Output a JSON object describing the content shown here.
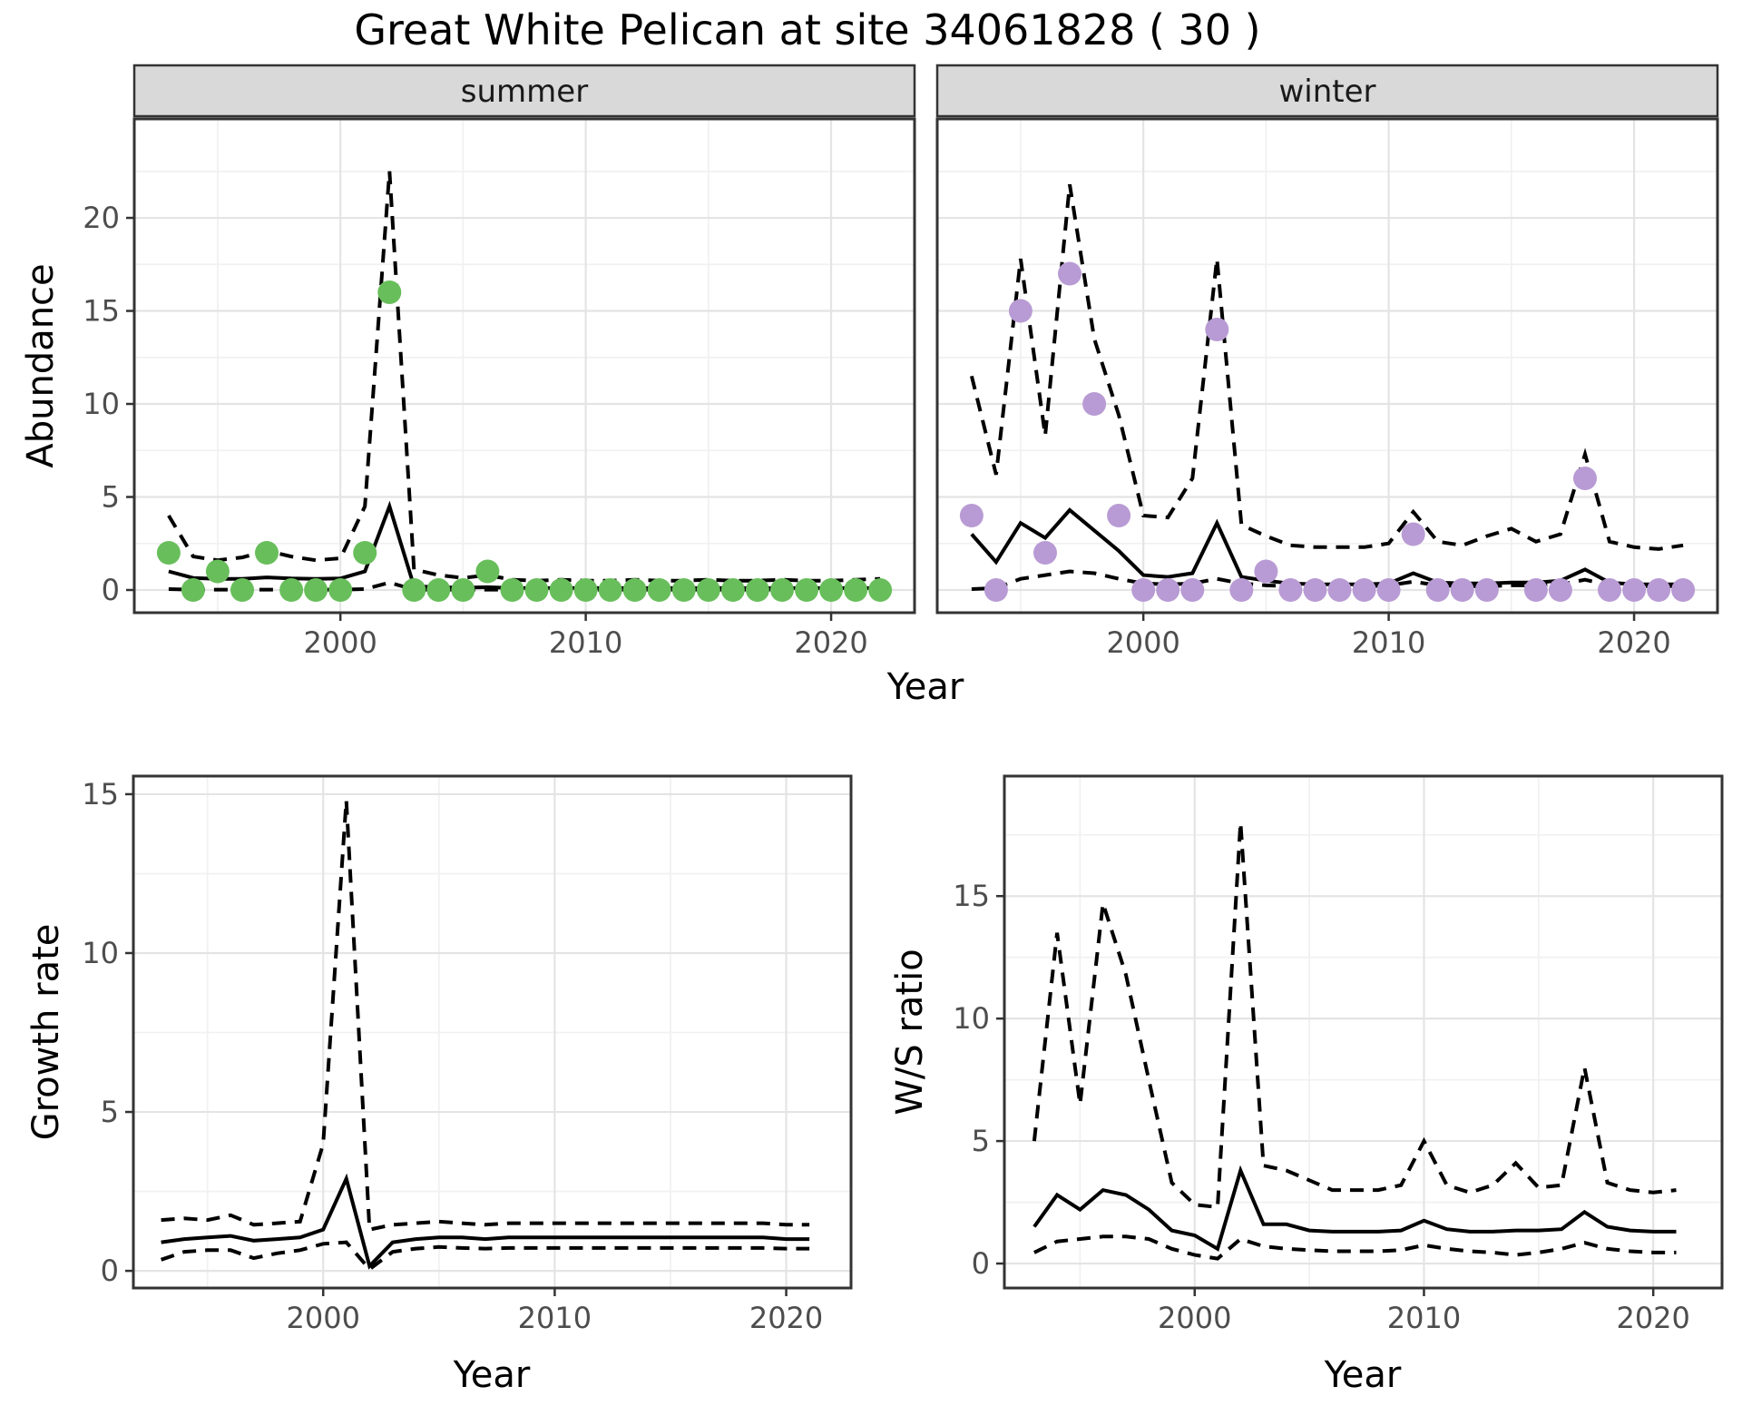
{
  "title": "Great White Pelican at site 34061828 ( 30 )",
  "colors": {
    "summer_point": "#68be5b",
    "winter_point": "#b89bd4",
    "line": "#000000",
    "panel_border": "#333333",
    "strip_bg": "#d9d9d9",
    "strip_text": "#1a1a1a",
    "grid_major": "#e4e4e4",
    "grid_minor": "#f1f1f1",
    "tick_label": "#4d4d4d",
    "axis_title": "#000000"
  },
  "chart_data": [
    {
      "id": "abundance-summer",
      "type": "line",
      "facet_label": "summer",
      "xlabel": "Year",
      "ylabel": "Abundance",
      "xlim": [
        1991.6,
        2023.4
      ],
      "ylim": [
        -1.22,
        25.32
      ],
      "x_ticks": [
        2000,
        2010,
        2020
      ],
      "y_ticks": [
        0,
        5,
        10,
        15,
        20
      ],
      "x_minor": [
        1995,
        2005,
        2015
      ],
      "y_minor": [
        2.5,
        7.5,
        12.5,
        17.5,
        22.5
      ],
      "grid": true,
      "legend_position": "none",
      "x": [
        1993,
        1994,
        1995,
        1996,
        1997,
        1998,
        1999,
        2000,
        2001,
        2002,
        2003,
        2004,
        2005,
        2006,
        2007,
        2008,
        2009,
        2010,
        2011,
        2012,
        2013,
        2014,
        2015,
        2016,
        2017,
        2018,
        2019,
        2020,
        2021,
        2022
      ],
      "series": [
        {
          "name": "median",
          "style": "solid",
          "values": [
            1.0,
            0.65,
            0.6,
            0.6,
            0.68,
            0.62,
            0.6,
            0.62,
            1.0,
            4.5,
            0.2,
            0.15,
            0.12,
            0.15,
            0.1,
            0.1,
            0.1,
            0.1,
            0.1,
            0.1,
            0.1,
            0.1,
            0.1,
            0.1,
            0.1,
            0.1,
            0.1,
            0.1,
            0.1,
            0.1
          ]
        },
        {
          "name": "upper_ci",
          "style": "dashed",
          "values": [
            4.0,
            1.8,
            1.6,
            1.75,
            2.1,
            1.8,
            1.6,
            1.7,
            4.5,
            22.5,
            1.1,
            0.8,
            0.65,
            0.8,
            0.55,
            0.5,
            0.55,
            0.5,
            0.5,
            0.55,
            0.5,
            0.5,
            0.55,
            0.5,
            0.5,
            0.55,
            0.5,
            0.5,
            0.55,
            0.6
          ]
        },
        {
          "name": "lower_ci",
          "style": "dashed",
          "values": [
            0.05,
            0.02,
            0.02,
            0.02,
            0.02,
            0.02,
            0.02,
            0.02,
            0.05,
            0.4,
            0.02,
            0.02,
            0.02,
            0.02,
            0.02,
            0.02,
            0.02,
            0.02,
            0.02,
            0.02,
            0.02,
            0.02,
            0.02,
            0.02,
            0.02,
            0.02,
            0.02,
            0.02,
            0.02,
            0.02
          ]
        }
      ],
      "points": {
        "name": "observed",
        "color_key": "summer_point",
        "values": [
          2,
          0,
          1,
          0,
          2,
          0,
          0,
          0,
          2,
          16,
          0,
          0,
          0,
          1,
          0,
          0,
          0,
          0,
          0,
          0,
          0,
          0,
          0,
          0,
          0,
          0,
          0,
          0,
          0,
          0
        ]
      }
    },
    {
      "id": "abundance-winter",
      "type": "line",
      "facet_label": "winter",
      "xlabel": "Year",
      "ylabel": "Abundance",
      "xlim": [
        1991.6,
        2023.4
      ],
      "ylim": [
        -1.22,
        25.32
      ],
      "x_ticks": [
        2000,
        2010,
        2020
      ],
      "y_ticks": [
        0,
        5,
        10,
        15,
        20
      ],
      "x_minor": [
        1995,
        2005,
        2015
      ],
      "y_minor": [
        2.5,
        7.5,
        12.5,
        17.5,
        22.5
      ],
      "grid": true,
      "legend_position": "none",
      "x": [
        1993,
        1994,
        1995,
        1996,
        1997,
        1998,
        1999,
        2000,
        2001,
        2002,
        2003,
        2004,
        2005,
        2006,
        2007,
        2008,
        2009,
        2010,
        2011,
        2012,
        2013,
        2014,
        2015,
        2016,
        2017,
        2018,
        2019,
        2020,
        2021,
        2022
      ],
      "series": [
        {
          "name": "median",
          "style": "solid",
          "values": [
            3.0,
            1.5,
            3.6,
            2.8,
            4.3,
            3.2,
            2.1,
            0.8,
            0.7,
            0.9,
            3.6,
            0.7,
            0.5,
            0.35,
            0.3,
            0.3,
            0.3,
            0.35,
            0.9,
            0.4,
            0.35,
            0.35,
            0.4,
            0.4,
            0.5,
            1.1,
            0.4,
            0.3,
            0.3,
            0.3
          ]
        },
        {
          "name": "upper_ci",
          "style": "dashed",
          "values": [
            11.5,
            6.2,
            17.8,
            8.3,
            21.8,
            13.5,
            9.4,
            4.0,
            3.9,
            6.0,
            17.8,
            3.5,
            2.9,
            2.4,
            2.3,
            2.3,
            2.3,
            2.5,
            4.2,
            2.6,
            2.4,
            2.9,
            3.3,
            2.6,
            3.0,
            7.3,
            2.6,
            2.3,
            2.2,
            2.4
          ]
        },
        {
          "name": "lower_ci",
          "style": "dashed",
          "values": [
            0.05,
            0.1,
            0.6,
            0.8,
            1.0,
            0.9,
            0.6,
            0.35,
            0.3,
            0.35,
            0.6,
            0.35,
            0.25,
            0.2,
            0.2,
            0.2,
            0.2,
            0.25,
            0.45,
            0.25,
            0.2,
            0.2,
            0.25,
            0.25,
            0.3,
            0.55,
            0.25,
            0.2,
            0.2,
            0.2
          ]
        }
      ],
      "points": {
        "name": "observed",
        "color_key": "winter_point",
        "values": [
          4,
          0,
          15,
          2,
          17,
          10,
          4,
          0,
          0,
          0,
          14,
          0,
          1,
          0,
          0,
          0,
          0,
          0,
          3,
          0,
          0,
          0,
          null,
          0,
          0,
          6,
          0,
          0,
          0,
          0
        ]
      }
    },
    {
      "id": "growth-rate",
      "type": "line",
      "facet_label": null,
      "xlabel": "Year",
      "ylabel": "Growth rate",
      "xlim": [
        1991.8,
        2022.8
      ],
      "ylim": [
        -0.54,
        15.57
      ],
      "x_ticks": [
        2000,
        2010,
        2020
      ],
      "y_ticks": [
        0,
        5,
        10,
        15
      ],
      "x_minor": [
        1995,
        2005,
        2015
      ],
      "y_minor": [
        2.5,
        7.5,
        12.5
      ],
      "grid": true,
      "legend_position": "none",
      "x": [
        1993,
        1994,
        1995,
        1996,
        1997,
        1998,
        1999,
        2000,
        2001,
        2002,
        2003,
        2004,
        2005,
        2006,
        2007,
        2008,
        2009,
        2010,
        2011,
        2012,
        2013,
        2014,
        2015,
        2016,
        2017,
        2018,
        2019,
        2020,
        2021
      ],
      "series": [
        {
          "name": "median",
          "style": "solid",
          "values": [
            0.9,
            1.0,
            1.05,
            1.1,
            0.95,
            1.0,
            1.05,
            1.3,
            2.9,
            0.15,
            0.9,
            1.0,
            1.05,
            1.05,
            1.0,
            1.05,
            1.05,
            1.05,
            1.05,
            1.05,
            1.05,
            1.05,
            1.05,
            1.05,
            1.05,
            1.05,
            1.05,
            1.0,
            1.0
          ]
        },
        {
          "name": "upper_ci",
          "style": "dashed",
          "values": [
            1.6,
            1.65,
            1.6,
            1.75,
            1.45,
            1.5,
            1.55,
            4.0,
            14.8,
            1.3,
            1.45,
            1.5,
            1.55,
            1.5,
            1.45,
            1.5,
            1.5,
            1.5,
            1.5,
            1.5,
            1.5,
            1.5,
            1.5,
            1.5,
            1.5,
            1.5,
            1.5,
            1.45,
            1.45
          ]
        },
        {
          "name": "lower_ci",
          "style": "dashed",
          "values": [
            0.35,
            0.6,
            0.65,
            0.65,
            0.4,
            0.55,
            0.65,
            0.85,
            0.9,
            0.05,
            0.6,
            0.7,
            0.75,
            0.72,
            0.7,
            0.72,
            0.72,
            0.72,
            0.72,
            0.72,
            0.72,
            0.72,
            0.72,
            0.72,
            0.72,
            0.72,
            0.72,
            0.7,
            0.7
          ]
        }
      ],
      "points": null
    },
    {
      "id": "ws-ratio",
      "type": "line",
      "facet_label": null,
      "xlabel": "Year",
      "ylabel": "W/S ratio",
      "xlim": [
        1991.7,
        2023.0
      ],
      "ylim": [
        -1.0,
        19.9
      ],
      "x_ticks": [
        2000,
        2010,
        2020
      ],
      "y_ticks": [
        0,
        5,
        10,
        15
      ],
      "x_minor": [
        1995,
        2005,
        2015
      ],
      "y_minor": [
        2.5,
        7.5,
        12.5,
        17.5
      ],
      "grid": true,
      "legend_position": "none",
      "x": [
        1993,
        1994,
        1995,
        1996,
        1997,
        1998,
        1999,
        2000,
        2001,
        2002,
        2003,
        2004,
        2005,
        2006,
        2007,
        2008,
        2009,
        2010,
        2011,
        2012,
        2013,
        2014,
        2015,
        2016,
        2017,
        2018,
        2019,
        2020,
        2021
      ],
      "series": [
        {
          "name": "median",
          "style": "solid",
          "values": [
            1.5,
            2.8,
            2.2,
            3.0,
            2.8,
            2.2,
            1.35,
            1.15,
            0.6,
            3.8,
            1.6,
            1.6,
            1.35,
            1.3,
            1.3,
            1.3,
            1.35,
            1.75,
            1.4,
            1.3,
            1.3,
            1.35,
            1.35,
            1.4,
            2.1,
            1.5,
            1.35,
            1.3,
            1.3
          ]
        },
        {
          "name": "upper_ci",
          "style": "dashed",
          "values": [
            5.0,
            13.5,
            6.5,
            14.7,
            11.8,
            7.5,
            3.3,
            2.4,
            2.3,
            18.0,
            4.0,
            3.8,
            3.4,
            3.0,
            3.0,
            3.0,
            3.2,
            5.0,
            3.2,
            2.9,
            3.2,
            4.1,
            3.1,
            3.2,
            8.0,
            3.3,
            3.0,
            2.9,
            3.0
          ]
        },
        {
          "name": "lower_ci",
          "style": "dashed",
          "values": [
            0.45,
            0.9,
            1.0,
            1.1,
            1.1,
            1.0,
            0.6,
            0.35,
            0.2,
            1.0,
            0.7,
            0.6,
            0.55,
            0.5,
            0.5,
            0.5,
            0.55,
            0.75,
            0.6,
            0.5,
            0.45,
            0.35,
            0.45,
            0.6,
            0.85,
            0.6,
            0.5,
            0.45,
            0.45
          ]
        }
      ],
      "points": null
    }
  ]
}
